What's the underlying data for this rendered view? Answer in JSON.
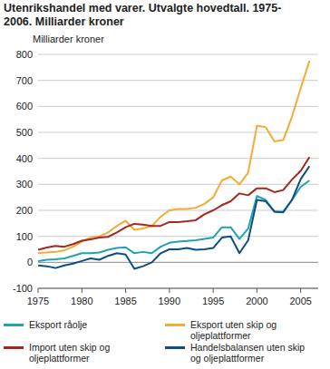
{
  "chart_data": {
    "type": "line",
    "title": "Utenrikshandel med varer. Utvalgte hovedtall. 1975-2006. Milliarder kroner",
    "y_label": "Milliarder kroner",
    "x": [
      1975,
      1976,
      1977,
      1978,
      1979,
      1980,
      1981,
      1982,
      1983,
      1984,
      1985,
      1986,
      1987,
      1988,
      1989,
      1990,
      1991,
      1992,
      1993,
      1994,
      1995,
      1996,
      1997,
      1998,
      1999,
      2000,
      2001,
      2002,
      2003,
      2004,
      2005,
      2006
    ],
    "series": [
      {
        "name": "Eksport råolje",
        "color": "#1fa3b3",
        "values": [
          5,
          10,
          12,
          15,
          25,
          35,
          35,
          38,
          48,
          55,
          58,
          35,
          40,
          35,
          60,
          75,
          80,
          82,
          85,
          90,
          95,
          135,
          135,
          90,
          130,
          255,
          240,
          195,
          195,
          240,
          290,
          315
        ]
      },
      {
        "name": "Eksport uten skip og oljeplattformer",
        "color": "#f5ab35",
        "values": [
          36,
          38,
          40,
          46,
          60,
          80,
          95,
          100,
          115,
          140,
          160,
          125,
          130,
          140,
          175,
          200,
          205,
          205,
          210,
          225,
          250,
          315,
          330,
          300,
          345,
          525,
          520,
          465,
          470,
          560,
          670,
          775
        ]
      },
      {
        "name": "Import uten skip og oljeplattformer",
        "color": "#a3281f",
        "values": [
          48,
          57,
          63,
          60,
          70,
          83,
          88,
          95,
          98,
          115,
          135,
          148,
          145,
          140,
          140,
          155,
          155,
          158,
          162,
          185,
          200,
          220,
          235,
          265,
          258,
          285,
          285,
          270,
          278,
          318,
          352,
          405
        ]
      },
      {
        "name": "Handelsbalansen uten skip og oljeplattformer",
        "color": "#0d4e86",
        "values": [
          -12,
          -15,
          -22,
          -12,
          -5,
          5,
          15,
          10,
          25,
          35,
          30,
          -25,
          -15,
          0,
          35,
          50,
          50,
          55,
          48,
          50,
          55,
          95,
          100,
          35,
          85,
          240,
          235,
          195,
          192,
          240,
          320,
          370
        ]
      }
    ],
    "xlim": [
      1975,
      2007
    ],
    "xticks": [
      1975,
      1980,
      1985,
      1990,
      1995,
      2000,
      2005
    ],
    "ylim": [
      -100,
      800
    ],
    "yticks": [
      -100,
      0,
      100,
      200,
      300,
      400,
      500,
      600,
      700,
      800
    ],
    "grid": true,
    "legend": "bottom"
  }
}
